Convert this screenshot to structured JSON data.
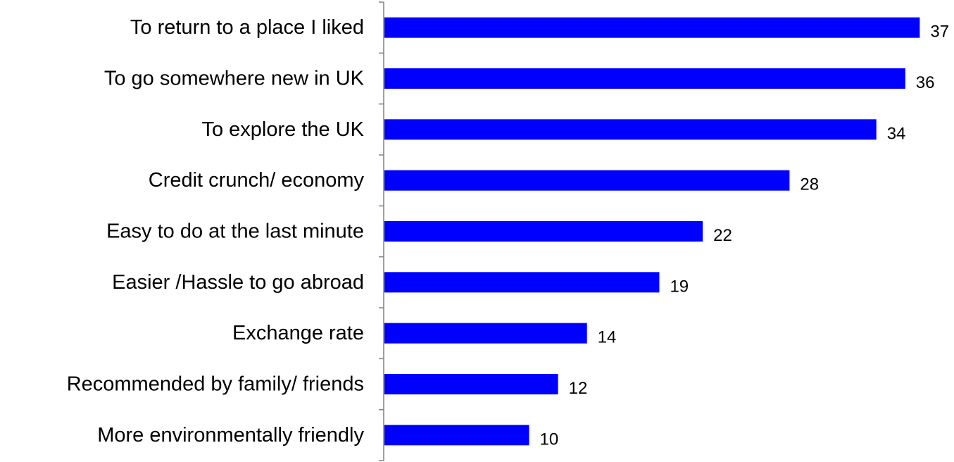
{
  "chart_data": {
    "type": "bar",
    "orientation": "horizontal",
    "categories": [
      "To return to a place I liked",
      "To go somewhere new in UK",
      "To explore the UK",
      "Credit crunch/ economy",
      "Easy to do at the last minute",
      "Easier /Hassle to go abroad",
      "Exchange rate",
      "Recommended by family/ friends",
      "More environmentally friendly"
    ],
    "values": [
      37,
      36,
      34,
      28,
      22,
      19,
      14,
      12,
      10
    ],
    "title": "",
    "xlabel": "",
    "ylabel": "",
    "xlim": [
      0,
      37
    ],
    "grid": false,
    "legend": "none",
    "data_labels": true
  },
  "colors": {
    "bar": "#0000FF",
    "axis": "#808080",
    "text": "#000000"
  }
}
